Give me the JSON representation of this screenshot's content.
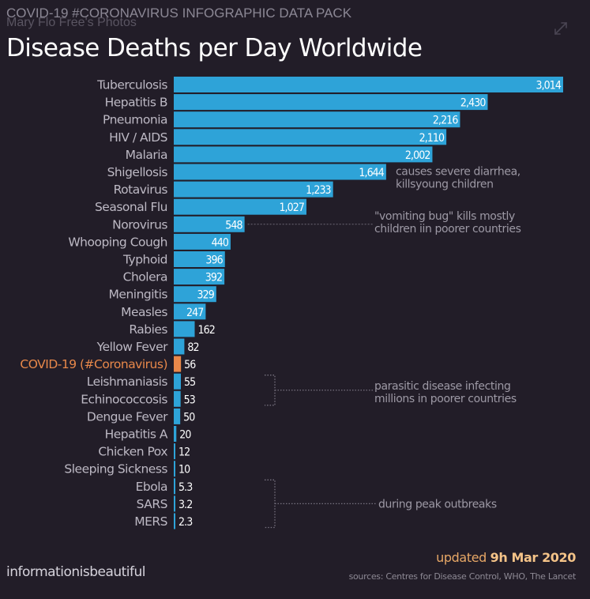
{
  "header": {
    "pack_title": "COVID-19 #CORONAVIRUS INFOGRAPHIC DATA PACK",
    "watermark": "Mary Flo Free's Photos",
    "expand_icon": "expand-arrows-icon",
    "title": "Disease Deaths per Day Worldwide"
  },
  "footer": {
    "brand": "informationisbeautiful",
    "updated_prefix": "updated",
    "updated_date": "9h Mar 2020",
    "sources": "sources: Centres for Disease Control, WHO, The Lancet"
  },
  "colors": {
    "background": "#221d28",
    "bar": "#2ea3d8",
    "highlight": "#e8884a",
    "label": "#bdb9c4",
    "annotation": "#9d99a5"
  },
  "chart_data": {
    "type": "bar",
    "orientation": "horizontal",
    "title": "Disease Deaths per Day Worldwide",
    "xlabel": "",
    "ylabel": "",
    "grid": false,
    "xlim": [
      0,
      3014
    ],
    "categories": [
      "Tuberculosis",
      "Hepatitis B",
      "Pneumonia",
      "HIV / AIDS",
      "Malaria",
      "Shigellosis",
      "Rotavirus",
      "Seasonal Flu",
      "Norovirus",
      "Whooping Cough",
      "Typhoid",
      "Cholera",
      "Meningitis",
      "Measles",
      "Rabies",
      "Yellow Fever",
      "COVID-19 (#Coronavirus)",
      "Leishmaniasis",
      "Echinococcosis",
      "Dengue Fever",
      "Hepatitis A",
      "Chicken Pox",
      "Sleeping Sickness",
      "Ebola",
      "SARS",
      "MERS"
    ],
    "values": [
      3014,
      2430,
      2216,
      2110,
      2002,
      1644,
      1233,
      1027,
      548,
      440,
      396,
      392,
      329,
      247,
      162,
      82,
      56,
      55,
      53,
      50,
      20,
      12,
      10,
      5.3,
      3.2,
      2.3
    ],
    "value_labels": [
      "3,014",
      "2,430",
      "2,216",
      "2,110",
      "2,002",
      "1,644",
      "1,233",
      "1,027",
      "548",
      "440",
      "396",
      "392",
      "329",
      "247",
      "162",
      "82",
      "56",
      "55",
      "53",
      "50",
      "20",
      "12",
      "10",
      "5.3",
      "3.2",
      "2.3"
    ],
    "highlight_category": "COVID-19 (#Coronavirus)",
    "annotations": [
      {
        "text": [
          "causes severe diarrhea,",
          "killsyoung children"
        ],
        "target": "Shigellosis",
        "style": "inline"
      },
      {
        "text": [
          "\"vomiting bug\" kills mostly",
          "children iin poorer countries"
        ],
        "target": "Norovirus",
        "style": "leader"
      },
      {
        "text": [
          "parasitic disease infecting",
          "millions in poorer countries"
        ],
        "targets": [
          "Leishmaniasis",
          "Echinococcosis"
        ],
        "style": "bracket"
      },
      {
        "text": [
          "during peak outbreaks"
        ],
        "targets": [
          "Ebola",
          "SARS",
          "MERS"
        ],
        "style": "bracket"
      }
    ]
  }
}
